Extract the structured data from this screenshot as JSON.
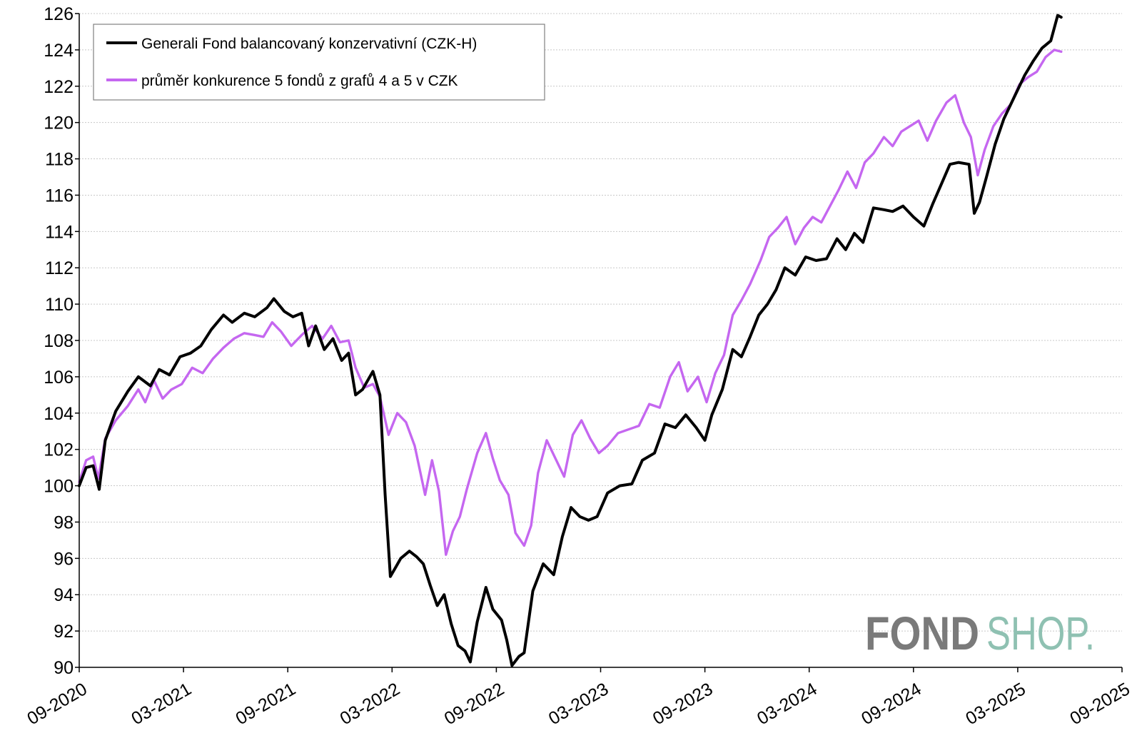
{
  "chart_data": {
    "type": "line",
    "title": "",
    "xlabel": "",
    "ylabel": "",
    "ylim": [
      90,
      126
    ],
    "yticks": [
      90,
      92,
      94,
      96,
      98,
      100,
      102,
      104,
      106,
      108,
      110,
      112,
      114,
      116,
      118,
      120,
      122,
      124,
      126
    ],
    "xticks": [
      "09-2020",
      "03-2021",
      "09-2021",
      "03-2022",
      "09-2022",
      "03-2023",
      "09-2023",
      "03-2024",
      "09-2024",
      "03-2025",
      "09-2025"
    ],
    "grid": "horizontal",
    "legend": "top-left",
    "x_unit": "month index from 09-2020",
    "series": [
      {
        "name": "Generali Fond balancovaný konzervativní (CZK-H)",
        "color": "#000000",
        "points": [
          [
            0,
            100
          ],
          [
            0.4,
            101
          ],
          [
            0.8,
            101.1
          ],
          [
            1.15,
            99.8
          ],
          [
            1.5,
            102.5
          ],
          [
            2.1,
            104.1
          ],
          [
            2.8,
            105.2
          ],
          [
            3.4,
            106
          ],
          [
            4.1,
            105.5
          ],
          [
            4.6,
            106.4
          ],
          [
            5.2,
            106.1
          ],
          [
            5.8,
            107.1
          ],
          [
            6.4,
            107.3
          ],
          [
            7,
            107.7
          ],
          [
            7.6,
            108.6
          ],
          [
            8.3,
            109.4
          ],
          [
            8.8,
            109
          ],
          [
            9.5,
            109.5
          ],
          [
            10.1,
            109.3
          ],
          [
            10.8,
            109.8
          ],
          [
            11.2,
            110.3
          ],
          [
            11.8,
            109.6
          ],
          [
            12.3,
            109.3
          ],
          [
            12.8,
            109.5
          ],
          [
            13.2,
            107.7
          ],
          [
            13.6,
            108.8
          ],
          [
            14.1,
            107.5
          ],
          [
            14.6,
            108.1
          ],
          [
            15.1,
            106.9
          ],
          [
            15.5,
            107.3
          ],
          [
            15.9,
            105
          ],
          [
            16.3,
            105.3
          ],
          [
            16.9,
            106.3
          ],
          [
            17.3,
            105
          ],
          [
            17.6,
            99.5
          ],
          [
            17.9,
            95
          ],
          [
            18.2,
            95.5
          ],
          [
            18.5,
            96
          ],
          [
            19,
            96.4
          ],
          [
            19.4,
            96.1
          ],
          [
            19.8,
            95.7
          ],
          [
            20.2,
            94.5
          ],
          [
            20.6,
            93.4
          ],
          [
            21,
            94
          ],
          [
            21.4,
            92.4
          ],
          [
            21.8,
            91.2
          ],
          [
            22.2,
            90.9
          ],
          [
            22.5,
            90.3
          ],
          [
            22.9,
            92.5
          ],
          [
            23.4,
            94.4
          ],
          [
            23.8,
            93.2
          ],
          [
            24.3,
            92.6
          ],
          [
            24.6,
            91.5
          ],
          [
            24.9,
            90.1
          ],
          [
            25.3,
            90.6
          ],
          [
            25.6,
            90.8
          ],
          [
            26.1,
            94.2
          ],
          [
            26.7,
            95.7
          ],
          [
            27.3,
            95.1
          ],
          [
            27.8,
            97.2
          ],
          [
            28.3,
            98.8
          ],
          [
            28.8,
            98.3
          ],
          [
            29.3,
            98.1
          ],
          [
            29.8,
            98.3
          ],
          [
            30.4,
            99.6
          ],
          [
            31.1,
            100
          ],
          [
            31.8,
            100.1
          ],
          [
            32.4,
            101.4
          ],
          [
            33.1,
            101.8
          ],
          [
            33.7,
            103.4
          ],
          [
            34.3,
            103.2
          ],
          [
            34.9,
            103.9
          ],
          [
            35.5,
            103.2
          ],
          [
            36,
            102.5
          ],
          [
            36.4,
            103.9
          ],
          [
            37,
            105.3
          ],
          [
            37.6,
            107.5
          ],
          [
            38.1,
            107.1
          ],
          [
            38.6,
            108.2
          ],
          [
            39.1,
            109.4
          ],
          [
            39.6,
            110
          ],
          [
            40.1,
            110.8
          ],
          [
            40.6,
            112
          ],
          [
            41.2,
            111.6
          ],
          [
            41.8,
            112.6
          ],
          [
            42.4,
            112.4
          ],
          [
            43,
            112.5
          ],
          [
            43.6,
            113.6
          ],
          [
            44.1,
            113
          ],
          [
            44.6,
            113.9
          ],
          [
            45.1,
            113.4
          ],
          [
            45.7,
            115.3
          ],
          [
            46.3,
            115.2
          ],
          [
            46.8,
            115.1
          ],
          [
            47.4,
            115.4
          ],
          [
            48,
            114.8
          ],
          [
            48.6,
            114.3
          ],
          [
            49.1,
            115.5
          ],
          [
            49.6,
            116.6
          ],
          [
            50.1,
            117.7
          ],
          [
            50.6,
            117.8
          ],
          [
            51.2,
            117.7
          ],
          [
            51.5,
            115
          ],
          [
            51.8,
            115.6
          ],
          [
            52.2,
            117
          ],
          [
            52.7,
            118.8
          ],
          [
            53.2,
            120.2
          ],
          [
            53.8,
            121.4
          ],
          [
            54.4,
            122.6
          ],
          [
            54.9,
            123.4
          ],
          [
            55.4,
            124.1
          ],
          [
            55.9,
            124.5
          ],
          [
            56.3,
            125.9
          ],
          [
            56.5,
            125.8
          ]
        ]
      },
      {
        "name": "průměr konkurence 5 fondů z grafů 4 a 5 v CZK",
        "color": "#c567f0",
        "points": [
          [
            0,
            100.2
          ],
          [
            0.4,
            101.4
          ],
          [
            0.8,
            101.6
          ],
          [
            1.1,
            100.4
          ],
          [
            1.5,
            102.6
          ],
          [
            2.1,
            103.6
          ],
          [
            2.8,
            104.4
          ],
          [
            3.4,
            105.3
          ],
          [
            3.8,
            104.6
          ],
          [
            4.3,
            105.8
          ],
          [
            4.8,
            104.8
          ],
          [
            5.3,
            105.3
          ],
          [
            5.9,
            105.6
          ],
          [
            6.5,
            106.5
          ],
          [
            7.1,
            106.2
          ],
          [
            7.7,
            107
          ],
          [
            8.3,
            107.6
          ],
          [
            8.9,
            108.1
          ],
          [
            9.5,
            108.4
          ],
          [
            10.1,
            108.3
          ],
          [
            10.6,
            108.2
          ],
          [
            11.1,
            109
          ],
          [
            11.6,
            108.5
          ],
          [
            12.2,
            107.7
          ],
          [
            12.8,
            108.3
          ],
          [
            13.4,
            108.8
          ],
          [
            14,
            108.1
          ],
          [
            14.5,
            108.8
          ],
          [
            15,
            107.9
          ],
          [
            15.5,
            108
          ],
          [
            15.9,
            106.5
          ],
          [
            16.4,
            105.4
          ],
          [
            16.9,
            105.6
          ],
          [
            17.3,
            104.9
          ],
          [
            17.8,
            102.8
          ],
          [
            18.3,
            104
          ],
          [
            18.8,
            103.5
          ],
          [
            19.3,
            102.2
          ],
          [
            19.9,
            99.5
          ],
          [
            20.3,
            101.4
          ],
          [
            20.7,
            99.7
          ],
          [
            21.1,
            96.2
          ],
          [
            21.5,
            97.5
          ],
          [
            21.9,
            98.3
          ],
          [
            22.3,
            99.8
          ],
          [
            22.9,
            101.8
          ],
          [
            23.4,
            102.9
          ],
          [
            23.8,
            101.5
          ],
          [
            24.2,
            100.3
          ],
          [
            24.7,
            99.5
          ],
          [
            25.1,
            97.4
          ],
          [
            25.6,
            96.7
          ],
          [
            26,
            97.8
          ],
          [
            26.4,
            100.7
          ],
          [
            26.9,
            102.5
          ],
          [
            27.4,
            101.5
          ],
          [
            27.9,
            100.5
          ],
          [
            28.4,
            102.8
          ],
          [
            28.9,
            103.6
          ],
          [
            29.4,
            102.6
          ],
          [
            29.9,
            101.8
          ],
          [
            30.4,
            102.2
          ],
          [
            31,
            102.9
          ],
          [
            31.6,
            103.1
          ],
          [
            32.2,
            103.3
          ],
          [
            32.8,
            104.5
          ],
          [
            33.4,
            104.3
          ],
          [
            34,
            106
          ],
          [
            34.5,
            106.8
          ],
          [
            35,
            105.2
          ],
          [
            35.6,
            106
          ],
          [
            36.1,
            104.6
          ],
          [
            36.6,
            106.2
          ],
          [
            37.1,
            107.2
          ],
          [
            37.6,
            109.4
          ],
          [
            38.1,
            110.2
          ],
          [
            38.6,
            111.1
          ],
          [
            39.2,
            112.4
          ],
          [
            39.7,
            113.7
          ],
          [
            40.2,
            114.2
          ],
          [
            40.7,
            114.8
          ],
          [
            41.2,
            113.3
          ],
          [
            41.7,
            114.2
          ],
          [
            42.2,
            114.8
          ],
          [
            42.7,
            114.5
          ],
          [
            43.2,
            115.4
          ],
          [
            43.7,
            116.3
          ],
          [
            44.2,
            117.3
          ],
          [
            44.7,
            116.4
          ],
          [
            45.2,
            117.8
          ],
          [
            45.7,
            118.3
          ],
          [
            46.3,
            119.2
          ],
          [
            46.8,
            118.7
          ],
          [
            47.3,
            119.5
          ],
          [
            47.8,
            119.8
          ],
          [
            48.3,
            120.1
          ],
          [
            48.8,
            119
          ],
          [
            49.3,
            120.1
          ],
          [
            49.9,
            121.1
          ],
          [
            50.4,
            121.5
          ],
          [
            50.9,
            120
          ],
          [
            51.3,
            119.2
          ],
          [
            51.7,
            117.1
          ],
          [
            52.1,
            118.5
          ],
          [
            52.6,
            119.8
          ],
          [
            53.1,
            120.5
          ],
          [
            53.6,
            121
          ],
          [
            54.1,
            122.1
          ],
          [
            54.6,
            122.5
          ],
          [
            55.1,
            122.8
          ],
          [
            55.6,
            123.6
          ],
          [
            56.1,
            124
          ],
          [
            56.5,
            123.9
          ]
        ]
      }
    ]
  },
  "logo": {
    "part1": "FOND",
    "part2": "SHOP.",
    "color1": "#7a7a7a",
    "color2": "#8fc1b2"
  }
}
